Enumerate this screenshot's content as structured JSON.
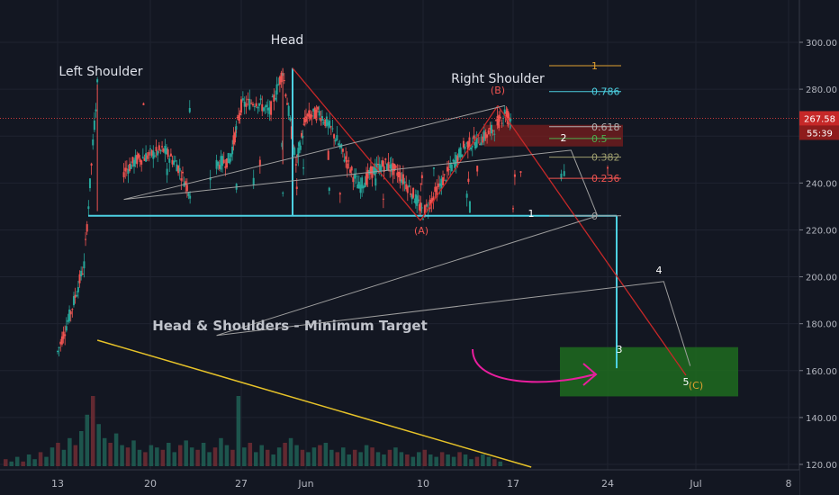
{
  "chart_data": {
    "type": "candlestick",
    "title": "Head & Shoulders - Minimum Target",
    "xlabel": "",
    "ylabel": "",
    "x_ticks": [
      "13",
      "20",
      "27",
      "Jun",
      "10",
      "17",
      "24",
      "Jul",
      "8"
    ],
    "y_ticks": [
      300,
      280,
      260,
      240,
      220,
      200,
      180,
      160,
      140,
      120
    ],
    "ylim": [
      120,
      305
    ],
    "grid": true,
    "current_price": "267.58",
    "countdown": "55:39",
    "pattern_labels": {
      "left_shoulder": "Left Shoulder",
      "head": "Head",
      "right_shoulder": "Right Shoulder"
    },
    "fib_levels": [
      {
        "label": "1",
        "value": 290,
        "color": "#e0a030"
      },
      {
        "label": "0.786",
        "value": 279,
        "color": "#4dd0e1"
      },
      {
        "label": "0.618",
        "value": 264,
        "color": "#b0b0b0"
      },
      {
        "label": "0.5",
        "value": 259,
        "color": "#4caf50"
      },
      {
        "label": "0.382",
        "value": 251,
        "color": "#9e9e6e"
      },
      {
        "label": "0.236",
        "value": 242,
        "color": "#ef5350"
      },
      {
        "label": "0",
        "value": 226,
        "color": "#9e9e9e"
      }
    ],
    "neckline": 226,
    "breakdown_low": 161,
    "target_zone": [
      149,
      170
    ],
    "wave_labels": [
      {
        "label": "1",
        "value": 226
      },
      {
        "label": "2",
        "value": 258
      },
      {
        "label": "3",
        "value": 175
      },
      {
        "label": "4",
        "value": 199
      },
      {
        "label": "5",
        "value": 155
      }
    ],
    "abc_labels": [
      {
        "label": "(A)",
        "value": 224
      },
      {
        "label": "(B)",
        "value": 279
      },
      {
        "label": "(C)",
        "value": 155
      }
    ],
    "price_path": [
      {
        "x": "13",
        "y": 168
      },
      {
        "x": "14",
        "y": 185
      },
      {
        "x": "15",
        "y": 205
      },
      {
        "x": "16",
        "y": 282
      },
      {
        "x": "17",
        "y": 228
      },
      {
        "x": "18",
        "y": 245
      },
      {
        "x": "19",
        "y": 250
      },
      {
        "x": "20",
        "y": 252
      },
      {
        "x": "21",
        "y": 254
      },
      {
        "x": "22",
        "y": 248
      },
      {
        "x": "23",
        "y": 236
      },
      {
        "x": "24",
        "y": 245
      },
      {
        "x": "25",
        "y": 248
      },
      {
        "x": "26",
        "y": 250
      },
      {
        "x": "27",
        "y": 273
      },
      {
        "x": "28",
        "y": 275
      },
      {
        "x": "29",
        "y": 270
      },
      {
        "x": "30",
        "y": 288
      },
      {
        "x": "31",
        "y": 248
      },
      {
        "x": "Jun 1",
        "y": 268
      },
      {
        "x": "Jun 2",
        "y": 270
      },
      {
        "x": "Jun 3",
        "y": 262
      },
      {
        "x": "Jun 4",
        "y": 250
      },
      {
        "x": "Jun 5",
        "y": 238
      },
      {
        "x": "Jun 6",
        "y": 245
      },
      {
        "x": "Jun 7",
        "y": 248
      },
      {
        "x": "Jun 8",
        "y": 244
      },
      {
        "x": "Jun 9",
        "y": 236
      },
      {
        "x": "10",
        "y": 227
      },
      {
        "x": "Jun 11",
        "y": 238
      },
      {
        "x": "Jun 12",
        "y": 247
      },
      {
        "x": "Jun 13",
        "y": 256
      },
      {
        "x": "Jun 14",
        "y": 258
      },
      {
        "x": "Jun 15",
        "y": 262
      },
      {
        "x": "Jun 16",
        "y": 270
      },
      {
        "x": "Jun 16b",
        "y": 267
      }
    ],
    "projection_path": [
      {
        "x": "Jun 16",
        "y": 273
      },
      {
        "x": "18",
        "y": 233
      },
      {
        "x": "Jun 21",
        "y": 254
      },
      {
        "x": "Jun 23",
        "y": 226
      },
      {
        "x": "25",
        "y": 175
      },
      {
        "x": "Jun 28",
        "y": 198
      },
      {
        "x": "Jun 30",
        "y": 162
      }
    ],
    "volume_trend": {
      "from_x": "16",
      "from_y": 1,
      "to_x": "Jun 18",
      "to_y": 0
    },
    "volume_bars": [
      3,
      2,
      4,
      2,
      5,
      3,
      6,
      4,
      8,
      10,
      7,
      12,
      9,
      15,
      22,
      30,
      18,
      12,
      10,
      14,
      9,
      8,
      11,
      7,
      6,
      9,
      8,
      7,
      10,
      6,
      9,
      11,
      8,
      7,
      10,
      6,
      8,
      12,
      9,
      7,
      30,
      8,
      10,
      6,
      9,
      7,
      5,
      8,
      10,
      12,
      9,
      7,
      6,
      8,
      9,
      10,
      7,
      6,
      8,
      5,
      7,
      6,
      9,
      8,
      6,
      5,
      7,
      8,
      6,
      5,
      4,
      6,
      7,
      5,
      4,
      6,
      5,
      4,
      6,
      5,
      3,
      4,
      5,
      4,
      3,
      2
    ]
  }
}
